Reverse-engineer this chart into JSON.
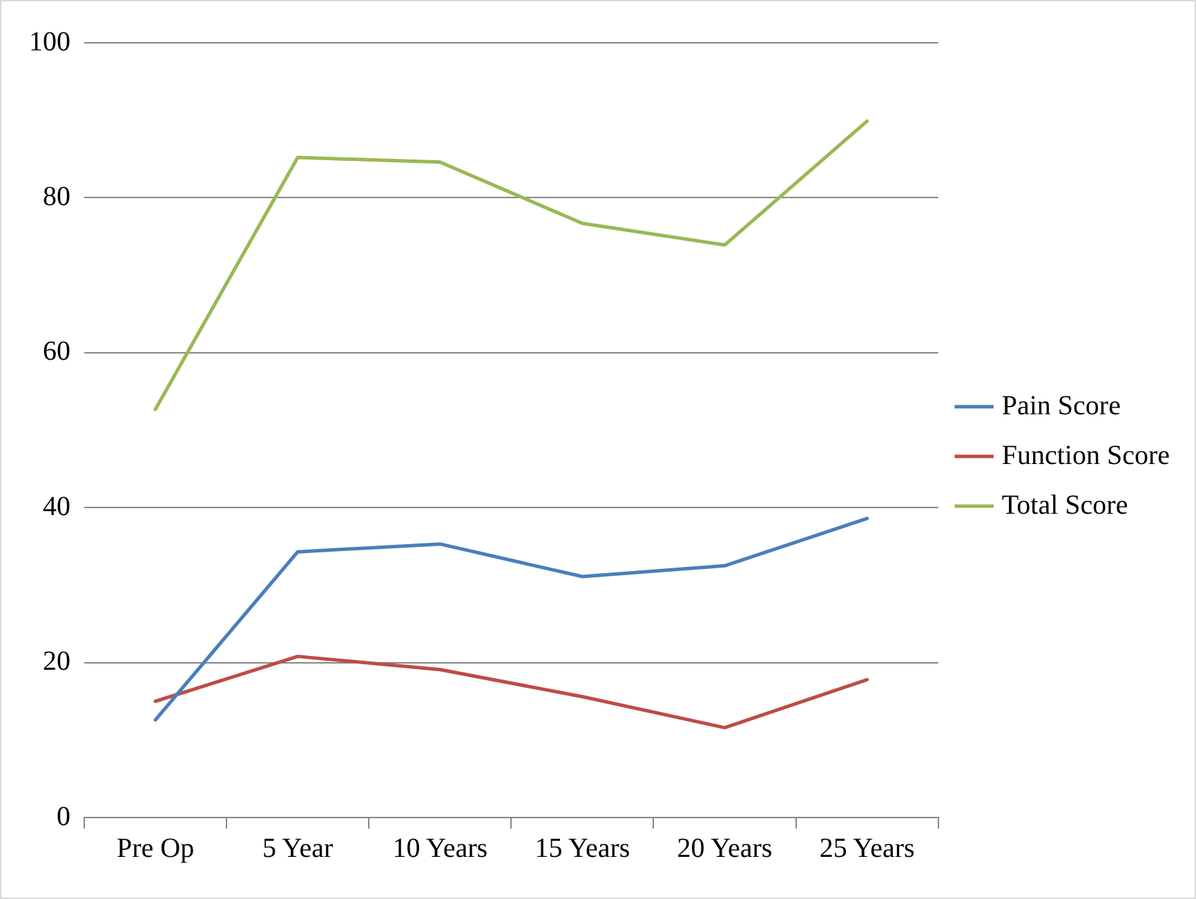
{
  "chart_data": {
    "type": "line",
    "categories": [
      "Pre Op",
      "5 Year",
      "10 Years",
      "15 Years",
      "20 Years",
      "25 Years"
    ],
    "series": [
      {
        "name": "Pain Score",
        "color": "#4a7ebb",
        "values": [
          12.6,
          34.3,
          35.3,
          31.1,
          32.5,
          38.6
        ]
      },
      {
        "name": "Function Score",
        "color": "#be4b48",
        "values": [
          15,
          20.8,
          19.1,
          15.6,
          11.6,
          17.8
        ]
      },
      {
        "name": "Total Score",
        "color": "#98b954",
        "values": [
          52.7,
          85.2,
          84.6,
          76.7,
          73.9,
          89.9
        ]
      }
    ],
    "ylim": [
      0,
      100
    ],
    "yticks": [
      0,
      20,
      40,
      60,
      80,
      100
    ],
    "grid": "y",
    "legend": "right",
    "marker": "none",
    "line_style": "solid"
  }
}
